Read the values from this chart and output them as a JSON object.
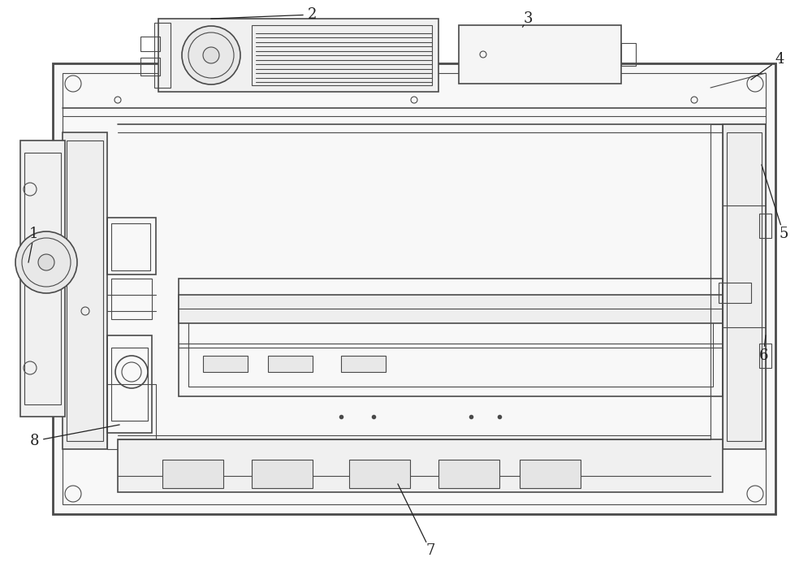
{
  "bg_color": "#ffffff",
  "line_color": "#4a4a4a",
  "fig_width": 10.0,
  "fig_height": 7.08,
  "label_fontsize": 13
}
